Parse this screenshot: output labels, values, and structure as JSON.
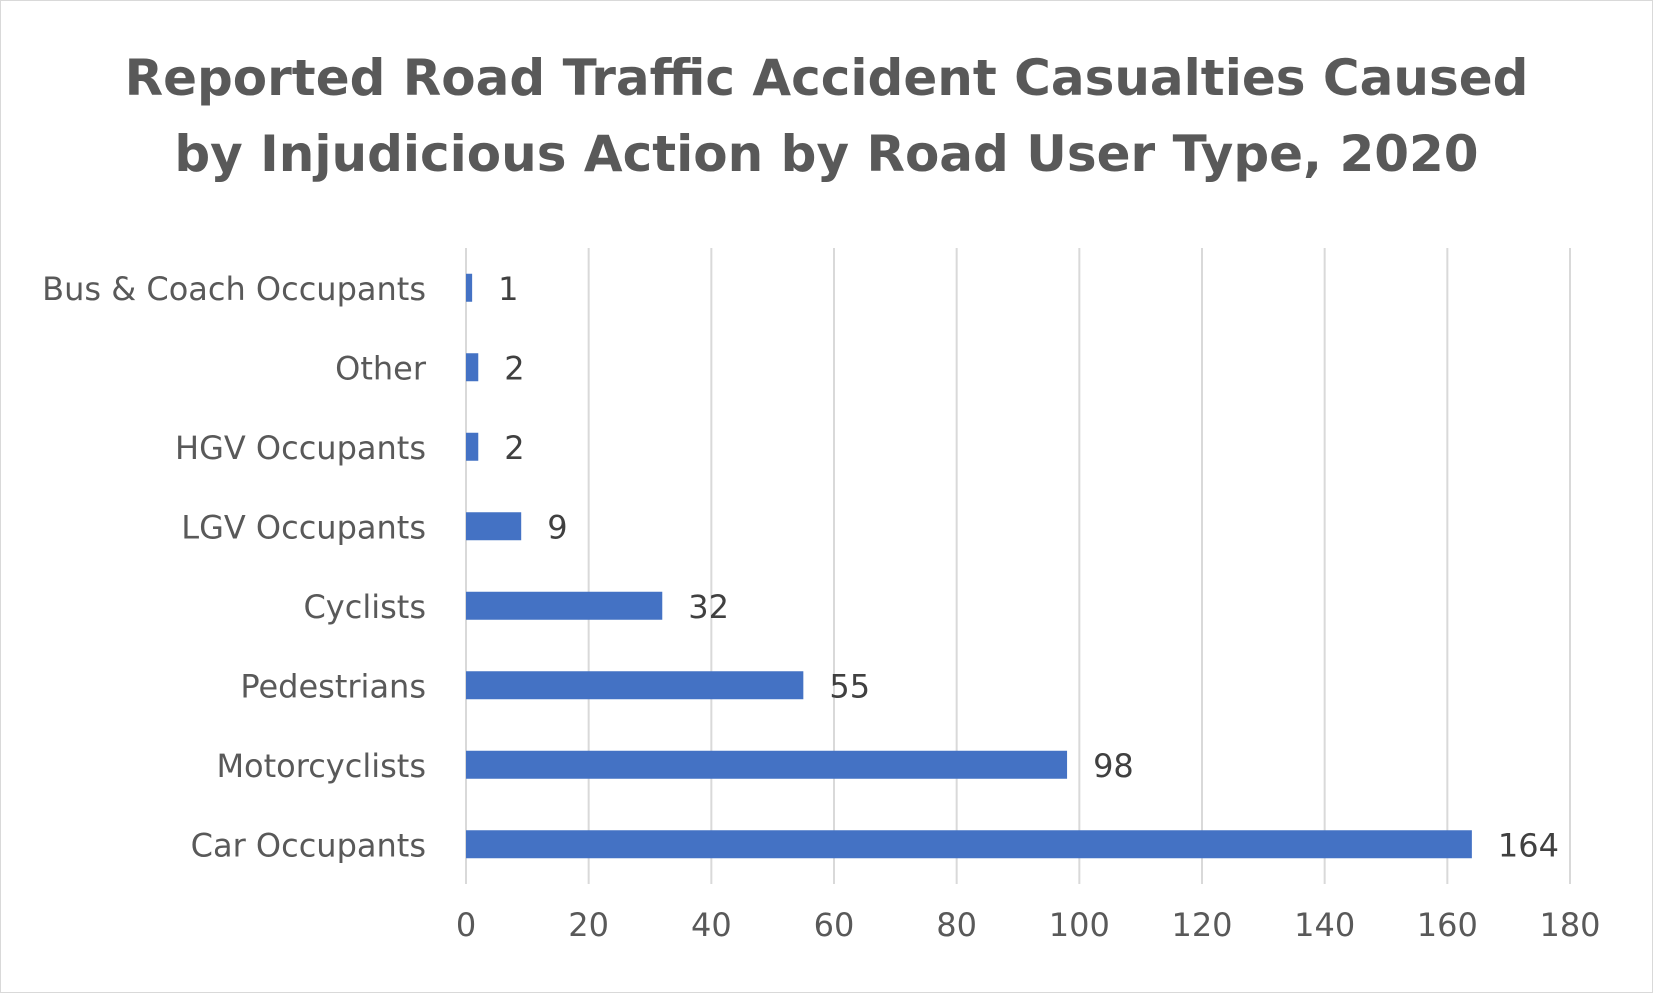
{
  "chart_data": {
    "type": "bar",
    "orientation": "horizontal",
    "title_lines": [
      "Reported Road Traffic Accident Casualties Caused",
      "by Injudicious Action by Road User Type, 2020"
    ],
    "categories": [
      "Car Occupants",
      "Motorcyclists",
      "Pedestrians",
      "Cyclists",
      "LGV Occupants",
      "HGV Occupants",
      "Other",
      "Bus & Coach Occupants"
    ],
    "values": [
      164,
      98,
      55,
      32,
      9,
      2,
      2,
      1
    ],
    "xlim": [
      0,
      180
    ],
    "x_ticks": [
      0,
      20,
      40,
      60,
      80,
      100,
      120,
      140,
      160,
      180
    ],
    "grid": "vertical",
    "data_labels": true,
    "legend": "none",
    "colors": {
      "bar": "#4472c4",
      "grid": "#d9d9d9",
      "text": "#595959"
    }
  }
}
